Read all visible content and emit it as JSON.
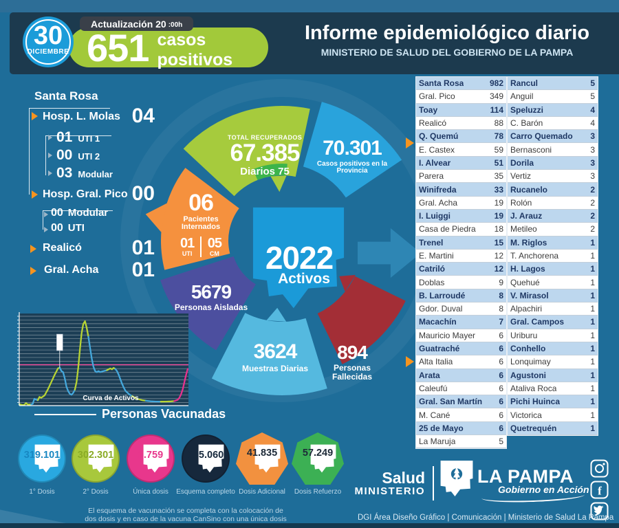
{
  "colors": {
    "orange": "#f5913e",
    "green": "#a6cb3d",
    "green_dark": "#3cb44b",
    "light_blue": "#29a3dc",
    "cyan": "#55b9df",
    "purple": "#4c4f9f",
    "dark_red": "#a32e36",
    "map_blue": "#1b9ad8",
    "arrow_blue": "#2e86b4",
    "pink": "#e9318e"
  },
  "header": {
    "date_day": "30",
    "date_month": "DICIEMBRE",
    "update_label": "Actualización 20",
    "update_suffix": ":00h",
    "daily_cases": "651",
    "daily_cases_label": "casos positivos",
    "title": "Informe epidemiológico diario",
    "subtitle": "MINISTERIO DE SALUD DEL GOBIERNO DE LA PAMPA"
  },
  "left_panel": {
    "title": "Santa Rosa",
    "molas": {
      "label": "Hosp. L. Molas",
      "value": "04",
      "sub": [
        {
          "value": "01",
          "label": "UTI 1"
        },
        {
          "value": "00",
          "label": "UTI 2"
        },
        {
          "value": "03",
          "label": "Modular"
        }
      ]
    },
    "pico": {
      "label": "Hosp. Gral. Pico",
      "value": "00",
      "sub": [
        {
          "value": "00",
          "label": "Modular"
        },
        {
          "value": "00",
          "label": "UTI"
        }
      ]
    },
    "realico": {
      "label": "Realicó",
      "value": "01"
    },
    "acha": {
      "label": "Gral. Acha",
      "value": "01"
    }
  },
  "wheel": {
    "recovered": {
      "label": "TOTAL RECUPERADOS",
      "value": "67.385",
      "daily_label": "Diarios",
      "daily_value": "75"
    },
    "positives": {
      "value": "70.301",
      "label": "Casos positivos en la Provincia"
    },
    "inpatients": {
      "value": "06",
      "label": "Pacientes Internados",
      "uti_value": "01",
      "uti_label": "UTI",
      "cm_value": "05",
      "cm_label": "CM"
    },
    "isolated": {
      "value": "5679",
      "label": "Personas Aisladas"
    },
    "samples": {
      "value": "3624",
      "label": "Muestras Diarias"
    },
    "deaths": {
      "value": "894",
      "label": "Personas Fallecidas"
    },
    "active": {
      "value": "2022",
      "label": "Activos"
    }
  },
  "table": {
    "left": [
      [
        "Santa Rosa",
        "982"
      ],
      [
        "Gral. Pico",
        "349"
      ],
      [
        "Toay",
        "114"
      ],
      [
        "Realicó",
        "88"
      ],
      [
        "Q. Quemú",
        "78"
      ],
      [
        "E. Castex",
        "59"
      ],
      [
        "I. Alvear",
        "51"
      ],
      [
        "Parera",
        "35"
      ],
      [
        "Winifreda",
        "33"
      ],
      [
        "Gral. Acha",
        "19"
      ],
      [
        "I. Luiggi",
        "19"
      ],
      [
        "Casa de Piedra",
        "18"
      ],
      [
        "Trenel",
        "15"
      ],
      [
        "E. Martini",
        "12"
      ],
      [
        "Catriló",
        "12"
      ],
      [
        "Doblas",
        "9"
      ],
      [
        "B. Larroudé",
        "8"
      ],
      [
        "Gdor. Duval",
        "8"
      ],
      [
        "Macachín",
        "7"
      ],
      [
        "Mauricio Mayer",
        "6"
      ],
      [
        "Guatraché",
        "6"
      ],
      [
        "Alta Italia",
        "6"
      ],
      [
        "Arata",
        "6"
      ],
      [
        "Caleufú",
        "6"
      ],
      [
        "Gral. San Martín",
        "6"
      ],
      [
        "M. Cané",
        "6"
      ],
      [
        "25 de Mayo",
        "6"
      ],
      [
        "La Maruja",
        "5"
      ]
    ],
    "right": [
      [
        "Rancul",
        "5"
      ],
      [
        "Anguil",
        "5"
      ],
      [
        "Speluzzi",
        "4"
      ],
      [
        "C. Barón",
        "4"
      ],
      [
        "Carro Quemado",
        "3"
      ],
      [
        "Bernasconi",
        "3"
      ],
      [
        "Dorila",
        "3"
      ],
      [
        "Vertiz",
        "3"
      ],
      [
        "Rucanelo",
        "2"
      ],
      [
        "Rolón",
        "2"
      ],
      [
        "J. Arauz",
        "2"
      ],
      [
        "Metileo",
        "2"
      ],
      [
        "M. Riglos",
        "1"
      ],
      [
        "T. Anchorena",
        "1"
      ],
      [
        "H. Lagos",
        "1"
      ],
      [
        "Quehué",
        "1"
      ],
      [
        "V. Mirasol",
        "1"
      ],
      [
        "Alpachiri",
        "1"
      ],
      [
        "Gral. Campos",
        "1"
      ],
      [
        "Uriburu",
        "1"
      ],
      [
        "Conhello",
        "1"
      ],
      [
        "Lonquimay",
        "1"
      ],
      [
        "Agustoni",
        "1"
      ],
      [
        "Ataliva Roca",
        "1"
      ],
      [
        "Pichi Huinca",
        "1"
      ],
      [
        "Victorica",
        "1"
      ],
      [
        "Quetrequén",
        "1"
      ]
    ]
  },
  "chart_data": {
    "type": "line",
    "title": "Curva de Activos",
    "xlabel": "",
    "ylabel": "",
    "ylim": [
      0,
      5000
    ],
    "grid": true,
    "legend": false,
    "reference_line": {
      "value": 2250,
      "color": "#ff4fa0"
    },
    "annotation_x": 24,
    "segments": [
      {
        "color": "#b8d434",
        "points": [
          [
            0,
            80
          ],
          [
            2,
            30
          ],
          [
            3,
            40
          ],
          [
            4,
            140
          ],
          [
            5,
            60
          ],
          [
            7,
            70
          ]
        ]
      },
      {
        "color": "#44a8dc",
        "points": [
          [
            7,
            70
          ],
          [
            8,
            100
          ],
          [
            9,
            380
          ],
          [
            10,
            330
          ],
          [
            11,
            300
          ]
        ]
      },
      {
        "color": "#b8d434",
        "points": [
          [
            11,
            300
          ],
          [
            12,
            480
          ],
          [
            13,
            430
          ],
          [
            15,
            560
          ],
          [
            17,
            900
          ],
          [
            19,
            1300
          ],
          [
            21,
            1700
          ],
          [
            23,
            2050
          ],
          [
            24,
            2100
          ]
        ]
      },
      {
        "color": "#44a8dc",
        "points": [
          [
            24,
            2100
          ],
          [
            25,
            1900
          ],
          [
            26,
            1850
          ],
          [
            27,
            1500
          ],
          [
            28,
            1050
          ],
          [
            29,
            800
          ],
          [
            30,
            650
          ],
          [
            31,
            600
          ],
          [
            32,
            700
          ],
          [
            33,
            880
          ]
        ]
      },
      {
        "color": "#b8d434",
        "points": [
          [
            33,
            880
          ],
          [
            34,
            1300
          ],
          [
            35,
            2100
          ],
          [
            36,
            3100
          ],
          [
            37,
            4000
          ],
          [
            38,
            4500
          ],
          [
            39,
            4650
          ],
          [
            40,
            4300
          ],
          [
            41,
            3800
          ]
        ]
      },
      {
        "color": "#44a8dc",
        "points": [
          [
            41,
            3800
          ],
          [
            42,
            3200
          ],
          [
            43,
            2600
          ],
          [
            44,
            2150
          ],
          [
            45,
            1900
          ],
          [
            46,
            1850
          ],
          [
            47,
            1900
          ],
          [
            48,
            1850
          ],
          [
            50,
            1900
          ],
          [
            52,
            1950
          ]
        ]
      },
      {
        "color": "#b8d434",
        "points": [
          [
            52,
            1950
          ],
          [
            53,
            2000
          ],
          [
            54,
            2050
          ],
          [
            55,
            2000
          ],
          [
            56,
            2080
          ],
          [
            57,
            2020
          ]
        ]
      },
      {
        "color": "#44a8dc",
        "points": [
          [
            57,
            2020
          ],
          [
            58,
            1900
          ],
          [
            59,
            1700
          ],
          [
            60,
            1450
          ],
          [
            61,
            1200
          ],
          [
            62,
            1000
          ],
          [
            63,
            820
          ],
          [
            65,
            640
          ],
          [
            67,
            520
          ]
        ]
      },
      {
        "color": "#b8d434",
        "points": [
          [
            67,
            520
          ],
          [
            69,
            420
          ],
          [
            71,
            350
          ],
          [
            73,
            300
          ],
          [
            75,
            270
          ]
        ]
      },
      {
        "color": "#44a8dc",
        "points": [
          [
            75,
            270
          ],
          [
            78,
            240
          ],
          [
            81,
            225
          ],
          [
            84,
            220
          ]
        ]
      },
      {
        "color": "#b8d434",
        "points": [
          [
            84,
            220
          ],
          [
            87,
            225
          ],
          [
            90,
            235
          ],
          [
            92,
            250
          ]
        ]
      },
      {
        "color": "#e9318e",
        "points": [
          [
            92,
            250
          ],
          [
            94,
            320
          ],
          [
            95,
            430
          ],
          [
            96,
            620
          ],
          [
            97,
            900
          ],
          [
            98,
            1300
          ],
          [
            99,
            1700
          ],
          [
            100,
            2022
          ]
        ]
      }
    ]
  },
  "vaccination": {
    "title": "Personas Vacunadas",
    "badges": [
      {
        "value": "319.101",
        "label": "1° Dosis",
        "color": "#29a8e0",
        "value_color": "#1787c2",
        "shape": "circle"
      },
      {
        "value": "302.301",
        "label": "2° Dosis",
        "color": "#a8c83c",
        "value_color": "#8aab26",
        "shape": "circle"
      },
      {
        "value": "2.759",
        "label": "Única dosis",
        "color": "#e8378c",
        "value_color": "#e8378c",
        "shape": "circle"
      },
      {
        "value": "305.060",
        "label": "Esquema completo",
        "color": "#16283c",
        "value_color": "#16283c",
        "shape": "circle"
      },
      {
        "value": "41.835",
        "label": "Dosis Adicional",
        "color": "#f2913f",
        "value_color": "#1d2a38",
        "shape": "heptagon"
      },
      {
        "value": "57.249",
        "label": "Dosis Refuerzo",
        "color": "#3cb054",
        "value_color": "#1d2a38",
        "shape": "heptagon"
      }
    ],
    "note_line1": "El esquema de vacunación se completa con la colocación de",
    "note_line2": "dos dosis y en caso de la vacuna CanSino con una única dosis"
  },
  "brand": {
    "ministry_top": "Salud",
    "ministry_bottom": "MINISTERIO",
    "province": "LA PAMPA",
    "province_sub": "Gobierno en Acción",
    "social": [
      "instagram",
      "facebook",
      "twitter"
    ]
  },
  "footer": {
    "credits": "DGI Área Diseño Gráfico  | Comunicación | Ministerio de Salud La Pampa"
  }
}
